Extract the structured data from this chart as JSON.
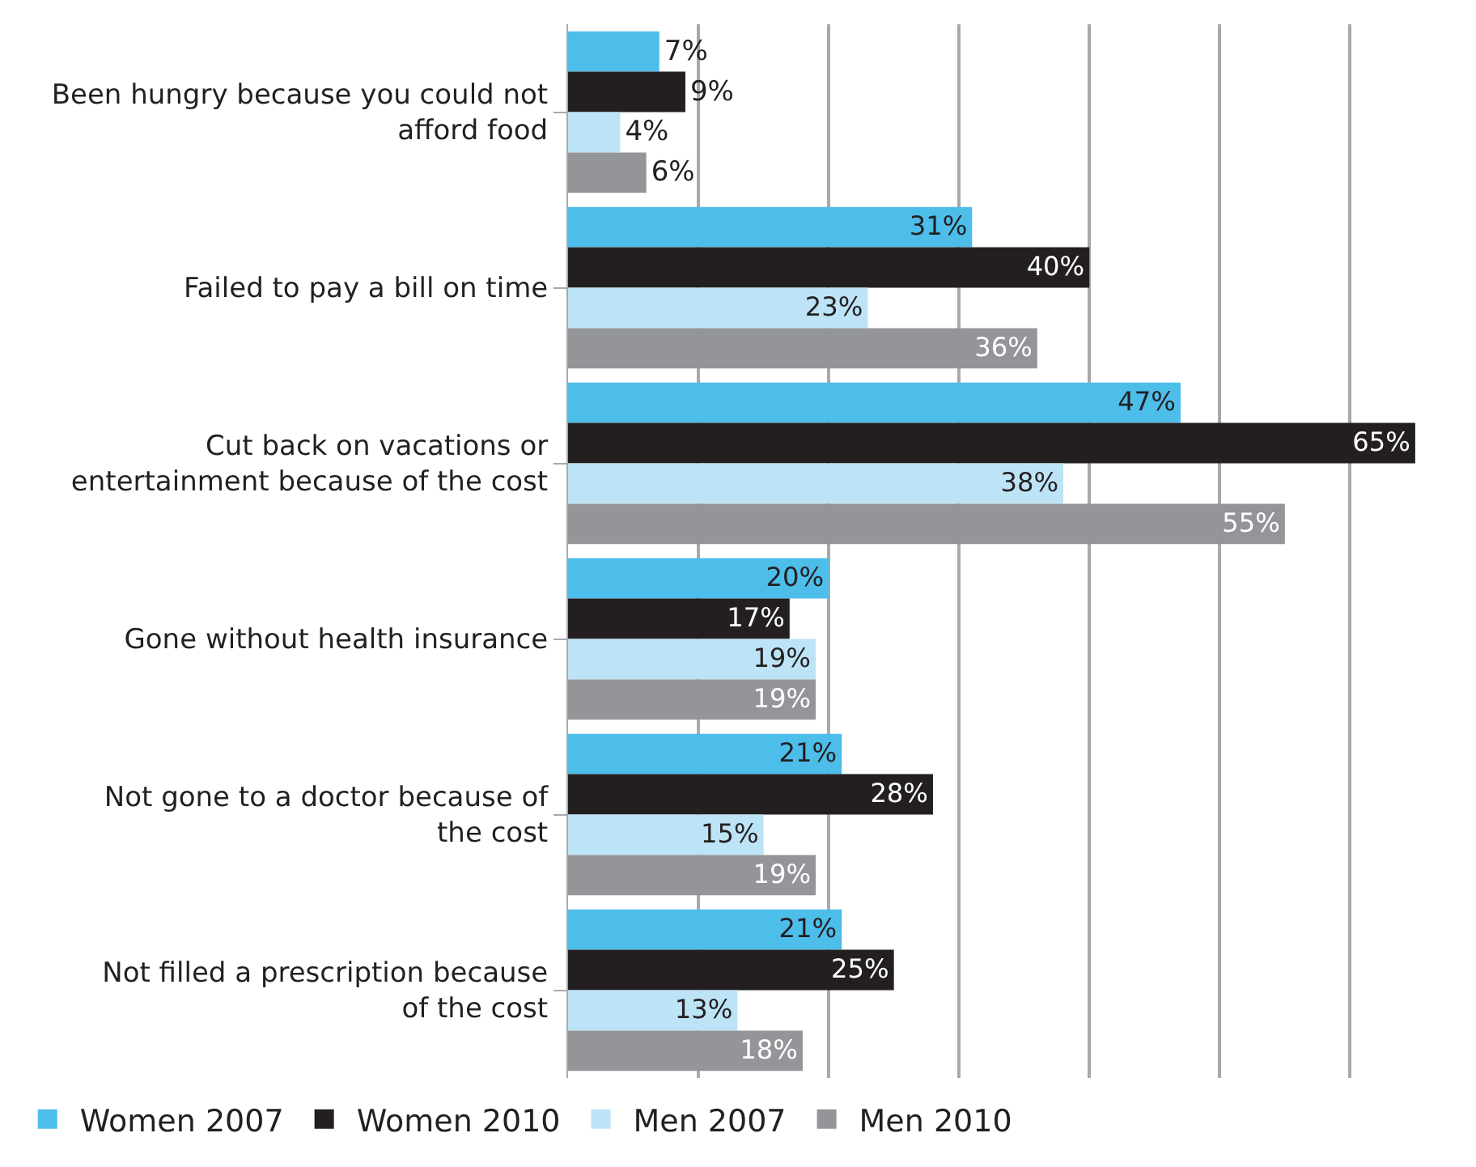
{
  "chart_data": {
    "type": "bar",
    "orientation": "horizontal",
    "categories": [
      "Been hungry because you could not afford food",
      "Failed to pay a bill on time",
      "Cut back on vacations or entertainment because of the cost",
      "Gone without health insurance",
      "Not gone to a doctor because of the cost",
      "Not filled a prescription because of the cost"
    ],
    "series": [
      {
        "name": "Women 2007",
        "color": "#4dbde9",
        "values": [
          7,
          31,
          47,
          20,
          21,
          21
        ],
        "value_labels": [
          "7%",
          "31%",
          "47%",
          "20%",
          "21%",
          "21%"
        ]
      },
      {
        "name": "Women 2010",
        "color": "#231f20",
        "values": [
          9,
          40,
          65,
          17,
          28,
          25
        ],
        "value_labels": [
          "9%",
          "40%",
          "65%",
          "17%",
          "28%",
          "25%"
        ]
      },
      {
        "name": "Men 2007",
        "color": "#bde3f6",
        "values": [
          4,
          23,
          38,
          19,
          15,
          13
        ],
        "value_labels": [
          "4%",
          "23%",
          "38%",
          "19%",
          "15%",
          "13%"
        ]
      },
      {
        "name": "Men 2010",
        "color": "#939598",
        "values": [
          6,
          36,
          55,
          19,
          19,
          18
        ],
        "value_labels": [
          "6%",
          "36%",
          "55%",
          "19%",
          "19%",
          "18%"
        ]
      }
    ],
    "grid": "x",
    "legend": "bottom",
    "tick_labels": "y"
  }
}
